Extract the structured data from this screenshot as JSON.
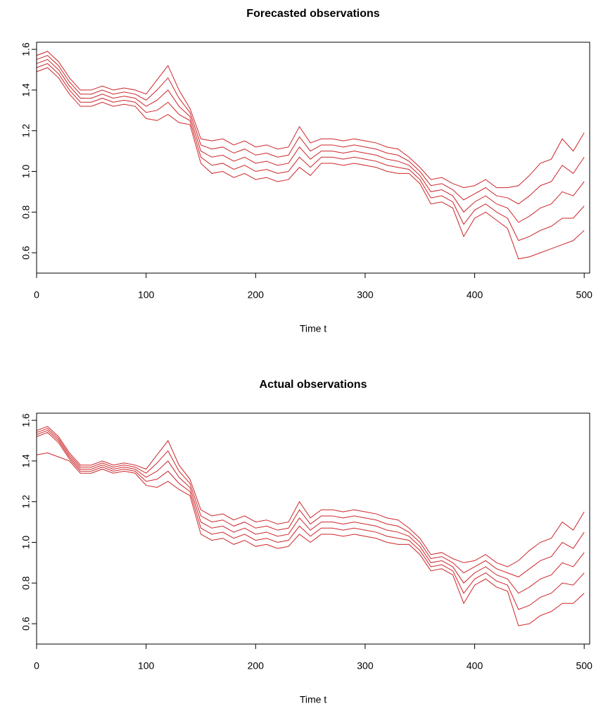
{
  "chart_data": [
    {
      "type": "line",
      "title": "Forecasted observations",
      "xlabel": "Time t",
      "xlim": [
        0,
        505
      ],
      "ylim": [
        0.5,
        1.635
      ],
      "xticks": [
        0,
        100,
        200,
        300,
        400,
        500
      ],
      "yticks": [
        0.6,
        0.8,
        {
          "value": 1,
          "label": "1.0"
        },
        1.2,
        1.4,
        1.6
      ],
      "x": [
        0,
        10,
        20,
        30,
        40,
        50,
        60,
        70,
        80,
        90,
        100,
        110,
        120,
        130,
        140,
        150,
        160,
        170,
        180,
        190,
        200,
        210,
        220,
        230,
        240,
        250,
        260,
        270,
        280,
        290,
        300,
        310,
        320,
        330,
        340,
        350,
        360,
        370,
        380,
        390,
        400,
        410,
        420,
        430,
        440,
        450,
        460,
        470,
        480,
        490,
        500
      ],
      "series": [
        {
          "color": "#cc2529",
          "values": [
            1.49,
            1.51,
            1.46,
            1.38,
            1.32,
            1.32,
            1.34,
            1.32,
            1.33,
            1.32,
            1.26,
            1.25,
            1.28,
            1.24,
            1.23,
            1.04,
            0.99,
            1.0,
            0.97,
            0.99,
            0.96,
            0.97,
            0.95,
            0.96,
            1.02,
            0.98,
            1.04,
            1.04,
            1.03,
            1.04,
            1.03,
            1.02,
            1.0,
            0.99,
            0.99,
            0.94,
            0.84,
            0.85,
            0.82,
            0.68,
            0.77,
            0.8,
            0.76,
            0.72,
            0.57,
            0.58,
            0.6,
            0.62,
            0.64,
            0.66,
            0.71
          ]
        },
        {
          "color": "#cc2529",
          "values": [
            1.51,
            1.53,
            1.48,
            1.4,
            1.34,
            1.34,
            1.36,
            1.34,
            1.35,
            1.34,
            1.29,
            1.3,
            1.34,
            1.28,
            1.25,
            1.07,
            1.03,
            1.04,
            1.01,
            1.03,
            1.0,
            1.01,
            0.99,
            1.0,
            1.07,
            1.02,
            1.07,
            1.07,
            1.06,
            1.07,
            1.06,
            1.05,
            1.03,
            1.02,
            1.01,
            0.96,
            0.87,
            0.88,
            0.85,
            0.74,
            0.81,
            0.84,
            0.8,
            0.77,
            0.66,
            0.68,
            0.71,
            0.73,
            0.77,
            0.77,
            0.83
          ]
        },
        {
          "color": "#cc2529",
          "values": [
            1.53,
            1.55,
            1.5,
            1.42,
            1.36,
            1.36,
            1.38,
            1.36,
            1.37,
            1.36,
            1.32,
            1.35,
            1.4,
            1.32,
            1.27,
            1.1,
            1.07,
            1.08,
            1.05,
            1.07,
            1.04,
            1.05,
            1.03,
            1.04,
            1.12,
            1.06,
            1.1,
            1.1,
            1.09,
            1.1,
            1.09,
            1.08,
            1.06,
            1.05,
            1.03,
            0.98,
            0.9,
            0.91,
            0.88,
            0.8,
            0.85,
            0.88,
            0.84,
            0.82,
            0.75,
            0.78,
            0.82,
            0.84,
            0.9,
            0.88,
            0.95
          ]
        },
        {
          "color": "#cc2529",
          "values": [
            1.55,
            1.57,
            1.52,
            1.44,
            1.38,
            1.38,
            1.4,
            1.38,
            1.39,
            1.38,
            1.35,
            1.4,
            1.46,
            1.36,
            1.29,
            1.13,
            1.11,
            1.12,
            1.09,
            1.11,
            1.08,
            1.09,
            1.07,
            1.08,
            1.17,
            1.1,
            1.13,
            1.13,
            1.12,
            1.13,
            1.12,
            1.11,
            1.09,
            1.08,
            1.05,
            1.0,
            0.93,
            0.94,
            0.91,
            0.86,
            0.89,
            0.92,
            0.88,
            0.87,
            0.84,
            0.88,
            0.93,
            0.95,
            1.03,
            0.99,
            1.07
          ]
        },
        {
          "color": "#cc2529",
          "values": [
            1.57,
            1.59,
            1.54,
            1.46,
            1.4,
            1.4,
            1.42,
            1.4,
            1.41,
            1.4,
            1.38,
            1.45,
            1.52,
            1.4,
            1.31,
            1.16,
            1.15,
            1.16,
            1.13,
            1.15,
            1.12,
            1.13,
            1.11,
            1.12,
            1.22,
            1.14,
            1.16,
            1.16,
            1.15,
            1.16,
            1.15,
            1.14,
            1.12,
            1.11,
            1.07,
            1.02,
            0.96,
            0.97,
            0.94,
            0.92,
            0.93,
            0.96,
            0.92,
            0.92,
            0.93,
            0.98,
            1.04,
            1.06,
            1.16,
            1.1,
            1.19
          ]
        }
      ]
    },
    {
      "type": "line",
      "title": "Actual observations",
      "xlabel": "Time t",
      "xlim": [
        0,
        505
      ],
      "ylim": [
        0.5,
        1.635
      ],
      "xticks": [
        0,
        100,
        200,
        300,
        400,
        500
      ],
      "yticks": [
        0.6,
        0.8,
        {
          "value": 1,
          "label": "1.0"
        },
        1.2,
        1.4,
        1.6
      ],
      "x": [
        0,
        10,
        20,
        30,
        40,
        50,
        60,
        70,
        80,
        90,
        100,
        110,
        120,
        130,
        140,
        150,
        160,
        170,
        180,
        190,
        200,
        210,
        220,
        230,
        240,
        250,
        260,
        270,
        280,
        290,
        300,
        310,
        320,
        330,
        340,
        350,
        360,
        370,
        380,
        390,
        400,
        410,
        420,
        430,
        440,
        450,
        460,
        470,
        480,
        490,
        500
      ],
      "series": [
        {
          "color": "#cc2529",
          "values": [
            1.43,
            1.44,
            1.42,
            1.4,
            1.34,
            1.34,
            1.36,
            1.34,
            1.35,
            1.34,
            1.28,
            1.27,
            1.3,
            1.26,
            1.23,
            1.04,
            1.01,
            1.02,
            0.99,
            1.01,
            0.98,
            0.99,
            0.97,
            0.98,
            1.04,
            1.0,
            1.04,
            1.04,
            1.03,
            1.04,
            1.03,
            1.02,
            1.0,
            0.99,
            0.99,
            0.94,
            0.86,
            0.87,
            0.84,
            0.7,
            0.79,
            0.82,
            0.78,
            0.76,
            0.59,
            0.6,
            0.64,
            0.66,
            0.7,
            0.7,
            0.75
          ]
        },
        {
          "color": "#cc2529",
          "values": [
            1.52,
            1.54,
            1.49,
            1.41,
            1.35,
            1.35,
            1.37,
            1.35,
            1.36,
            1.35,
            1.3,
            1.31,
            1.35,
            1.29,
            1.25,
            1.07,
            1.04,
            1.05,
            1.02,
            1.04,
            1.01,
            1.02,
            1.0,
            1.01,
            1.08,
            1.03,
            1.07,
            1.07,
            1.06,
            1.07,
            1.06,
            1.05,
            1.03,
            1.02,
            1.01,
            0.96,
            0.88,
            0.89,
            0.86,
            0.75,
            0.82,
            0.85,
            0.81,
            0.79,
            0.67,
            0.69,
            0.73,
            0.75,
            0.8,
            0.79,
            0.85
          ]
        },
        {
          "color": "#cc2529",
          "values": [
            1.53,
            1.55,
            1.5,
            1.42,
            1.36,
            1.36,
            1.38,
            1.36,
            1.37,
            1.36,
            1.32,
            1.35,
            1.4,
            1.32,
            1.27,
            1.1,
            1.07,
            1.08,
            1.05,
            1.07,
            1.04,
            1.05,
            1.03,
            1.04,
            1.12,
            1.06,
            1.1,
            1.1,
            1.09,
            1.1,
            1.09,
            1.08,
            1.06,
            1.05,
            1.03,
            0.98,
            0.9,
            0.91,
            0.88,
            0.8,
            0.85,
            0.88,
            0.84,
            0.82,
            0.75,
            0.78,
            0.82,
            0.84,
            0.9,
            0.88,
            0.95
          ]
        },
        {
          "color": "#cc2529",
          "values": [
            1.54,
            1.56,
            1.51,
            1.43,
            1.37,
            1.37,
            1.39,
            1.37,
            1.38,
            1.37,
            1.34,
            1.39,
            1.45,
            1.35,
            1.29,
            1.13,
            1.1,
            1.11,
            1.08,
            1.1,
            1.07,
            1.08,
            1.06,
            1.07,
            1.16,
            1.09,
            1.13,
            1.13,
            1.12,
            1.13,
            1.12,
            1.11,
            1.09,
            1.08,
            1.05,
            1.0,
            0.92,
            0.93,
            0.9,
            0.85,
            0.88,
            0.91,
            0.87,
            0.85,
            0.83,
            0.87,
            0.91,
            0.93,
            1.0,
            0.97,
            1.05
          ]
        },
        {
          "color": "#cc2529",
          "values": [
            1.55,
            1.57,
            1.52,
            1.44,
            1.38,
            1.38,
            1.4,
            1.38,
            1.39,
            1.38,
            1.36,
            1.43,
            1.5,
            1.38,
            1.31,
            1.16,
            1.13,
            1.14,
            1.11,
            1.13,
            1.1,
            1.11,
            1.09,
            1.1,
            1.2,
            1.12,
            1.16,
            1.16,
            1.15,
            1.16,
            1.15,
            1.14,
            1.12,
            1.11,
            1.07,
            1.02,
            0.94,
            0.95,
            0.92,
            0.9,
            0.91,
            0.94,
            0.9,
            0.88,
            0.91,
            0.96,
            1.0,
            1.02,
            1.1,
            1.06,
            1.15
          ]
        }
      ]
    }
  ]
}
